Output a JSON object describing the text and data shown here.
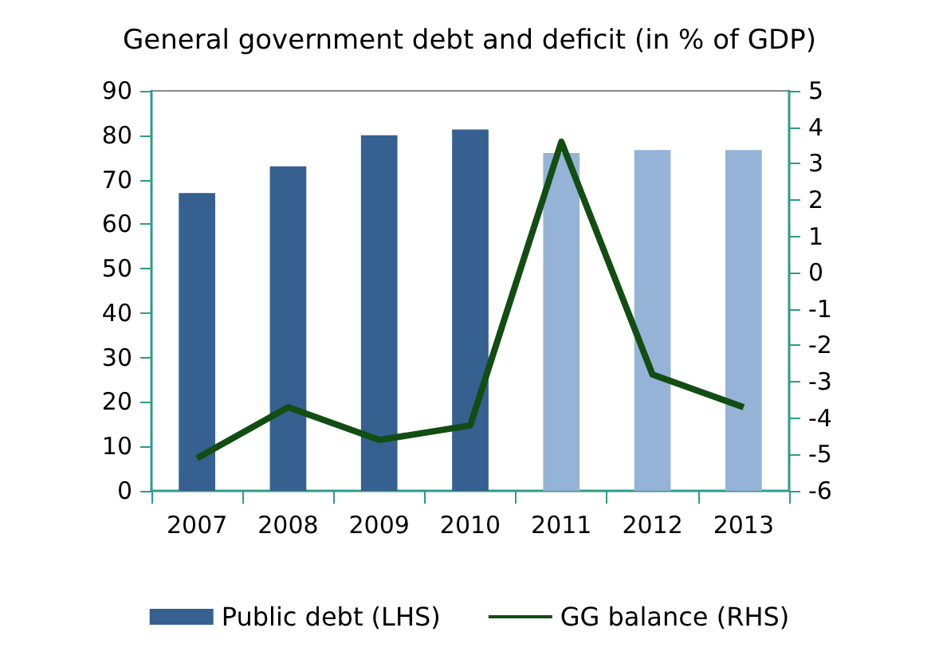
{
  "chart_data": {
    "type": "bar",
    "title": "General government debt and deficit (in % of GDP)",
    "categories": [
      "2007",
      "2008",
      "2009",
      "2010",
      "2011",
      "2012",
      "2013"
    ],
    "series": [
      {
        "name": "Public debt (LHS)",
        "color": "#35608f",
        "colors": [
          "#35608f",
          "#35608f",
          "#35608f",
          "#35608f",
          "#95b3d7",
          "#95b3d7",
          "#95b3d7"
        ],
        "values": [
          67,
          73,
          80,
          81.3,
          76,
          76.7,
          76.7
        ]
      },
      {
        "name": "GG balance (RHS)",
        "type": "line",
        "axis": "y2",
        "color": "#124d12",
        "values": [
          -5.1,
          -3.7,
          -4.6,
          -4.2,
          3.6,
          -2.8,
          -3.7
        ]
      }
    ],
    "ylim": [
      0,
      90
    ],
    "yticks": [
      0,
      10,
      20,
      30,
      40,
      50,
      60,
      70,
      80,
      90
    ],
    "y2lim": [
      -6,
      5
    ],
    "y2ticks": [
      -6,
      -5,
      -4,
      -3,
      -2,
      -1,
      0,
      1,
      2,
      3,
      4,
      5
    ],
    "grid": false,
    "legend": "bottom",
    "marker": "none",
    "line_style": "solid"
  }
}
